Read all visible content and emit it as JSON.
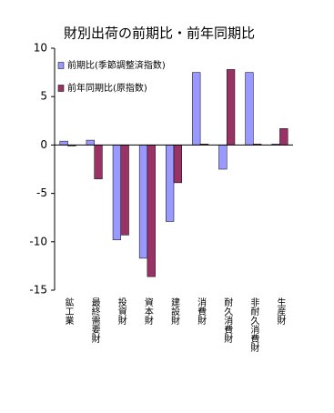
{
  "chart_data": {
    "type": "bar",
    "title": "財別出荷の前期比・前年同期比",
    "categories": [
      "鉱工業",
      "最終需要財",
      "投資財",
      "資本財",
      "建設財",
      "消費財",
      "耐久消費財",
      "非耐久消費財",
      "生産財"
    ],
    "series": [
      {
        "name": "前期比(季節調整済指数)",
        "color": "#9999ff",
        "values": [
          0.4,
          0.5,
          -9.8,
          -11.7,
          -7.9,
          7.5,
          -2.5,
          7.5,
          0.1
        ]
      },
      {
        "name": "前年同期比(原指数)",
        "color": "#993366",
        "values": [
          -0.1,
          -3.5,
          -9.3,
          -13.6,
          -3.9,
          0.1,
          7.8,
          0.1,
          1.7
        ]
      }
    ],
    "ylim": [
      -15,
      10
    ],
    "yticks": [
      -15,
      -10,
      -5,
      0,
      5,
      10
    ]
  }
}
